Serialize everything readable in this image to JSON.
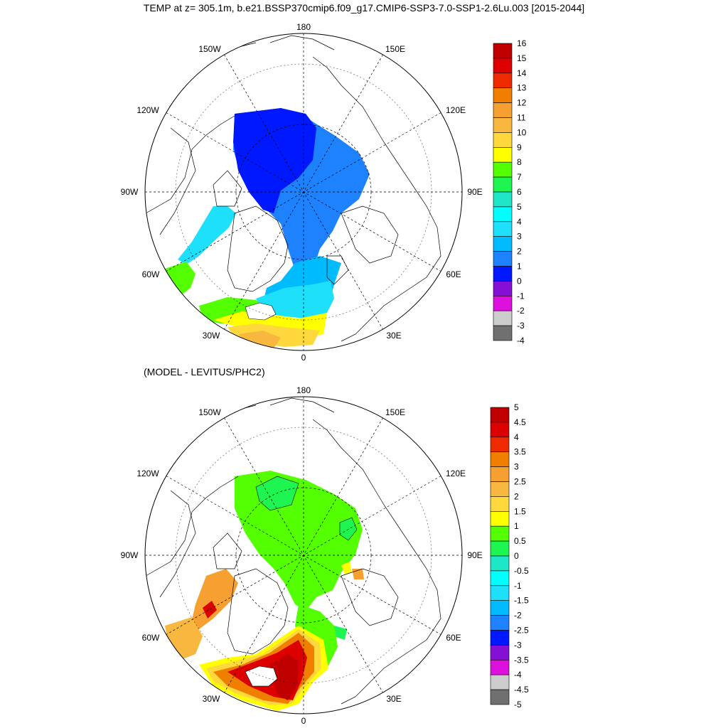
{
  "header": {
    "title": "TEMP at z= 305.1m, b.e21.BSSP370cmip6.f09_g17.CMIP6-SSP3-7.0-SSP1-2.6Lu.003 [2015-2044]",
    "subtitle": "(MODEL - LEVITUS/PHC2)"
  },
  "longitude_labels": {
    "top": "180",
    "bottom": "0",
    "w150": "150W",
    "w120": "120W",
    "w90": "90W",
    "w60": "60W",
    "w30": "30W",
    "e150": "150E",
    "e120": "120E",
    "e90": "90E",
    "e60": "60E",
    "e30": "30E"
  },
  "colorbar_top": {
    "labels": [
      "16",
      "15",
      "14",
      "13",
      "12",
      "11",
      "10",
      "9",
      "8",
      "7",
      "6",
      "5",
      "4",
      "3",
      "2",
      "1",
      "0",
      "-1",
      "-2",
      "-3",
      "-4"
    ],
    "colors": [
      "#c00000",
      "#dd0000",
      "#ee2a00",
      "#f07f00",
      "#f5a030",
      "#f8b840",
      "#fed83c",
      "#ffff00",
      "#53ff00",
      "#1ef550",
      "#1ee7c8",
      "#00ffff",
      "#1ee0fa",
      "#00bcff",
      "#1e82ff",
      "#0018ff",
      "#8410d6",
      "#de10de",
      "#cccccc",
      "#707070"
    ]
  },
  "colorbar_bottom": {
    "labels": [
      "5",
      "4.5",
      "4",
      "3.5",
      "3",
      "2.5",
      "2",
      "1.5",
      "1",
      "0.5",
      "0",
      "-0.5",
      "-1",
      "-1.5",
      "-2",
      "-2.5",
      "-3",
      "-3.5",
      "-4",
      "-4.5",
      "-5"
    ],
    "colors": [
      "#c00000",
      "#dd0000",
      "#ee2a00",
      "#f07f00",
      "#f5a030",
      "#f8b840",
      "#fed83c",
      "#ffff00",
      "#53ff00",
      "#1ef550",
      "#1ee7c8",
      "#00ffff",
      "#1ee0fa",
      "#00bcff",
      "#1e82ff",
      "#0018ff",
      "#8410d6",
      "#de10de",
      "#cccccc",
      "#707070"
    ]
  },
  "field_colors": {
    "top": {
      "basin_core": "#0018ff",
      "basin_outer": "#1e82ff",
      "fram": "#00bcff",
      "baffin": "#1ee0fa",
      "lab_sea": "#53ff00",
      "gin_cold": "#1ee0fa",
      "gin_warm_green": "#53ff00",
      "gin_yellow": "#ffff00",
      "gin_gold": "#fed83c",
      "gin_orange": "#f8b840"
    },
    "bottom": {
      "basin": "#53ff00",
      "basin_contour_patch": "#1ef550",
      "baffin": "#f5a030",
      "baffin_hot": "#dd0000",
      "lab_sea": "#f8b840",
      "gin_red": "#c00000",
      "gin_orange": "#f07f00",
      "gin_yellow": "#fed83c",
      "gin_lightyellow": "#ffff00",
      "barents": "#1ef550"
    }
  }
}
